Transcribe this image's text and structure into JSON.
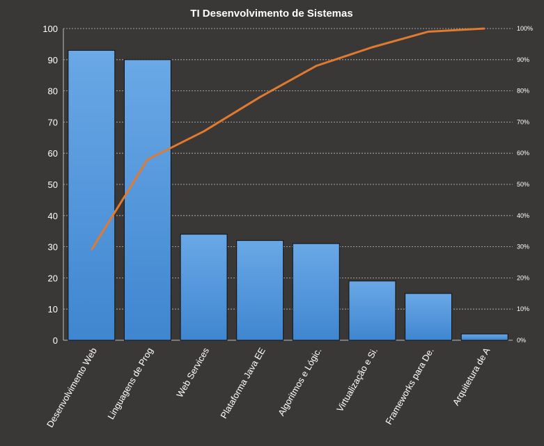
{
  "chart_data": {
    "type": "bar",
    "title": "TI Desenvolvimento  de Sistemas",
    "xlabel": "",
    "ylabel": "",
    "categories": [
      "Desenvolvimento Web",
      "Linguagens de Prog",
      "Web Services",
      "Plataforma Java EE",
      "Algoritmos e Lógic.",
      "Virtualização e Si.",
      "Frameworks para De.",
      "Arquitetura de A"
    ],
    "series": [
      {
        "type": "bar",
        "values": [
          93,
          90,
          34,
          32,
          31,
          19,
          15,
          2
        ],
        "color": "#4a90d9"
      },
      {
        "type": "line",
        "axis": "secondary",
        "values": [
          0.29,
          0.58,
          0.67,
          0.78,
          0.88,
          0.94,
          0.99,
          1.0
        ],
        "color": "#e07a30"
      }
    ],
    "ylim": [
      0,
      100
    ],
    "yticks": [
      0,
      10,
      20,
      30,
      40,
      50,
      60,
      70,
      80,
      90,
      100
    ],
    "y2lim": [
      0,
      1
    ],
    "y2ticks": [
      "0%",
      "10%",
      "20%",
      "30%",
      "40%",
      "50%",
      "60%",
      "70%",
      "80%",
      "90%",
      "100%"
    ],
    "grid": true,
    "legend": "none"
  }
}
